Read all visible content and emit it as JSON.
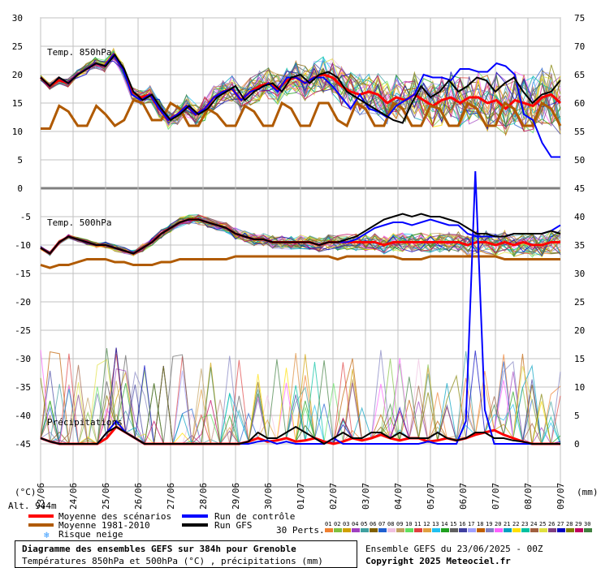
{
  "chart_data": {
    "type": "line",
    "title": "Diagramme des ensembles GEFS sur 384h pour Grenoble",
    "subtitle": "Températures 850hPa et 500hPa (°C) , précipitations (mm)",
    "altitude_label": "Alt. 944m",
    "left_axis_unit": "(°C)",
    "right_axis_unit": "(mm)",
    "x_dates": [
      "23/06",
      "24/06",
      "25/06",
      "26/06",
      "27/06",
      "28/06",
      "29/06",
      "30/06",
      "01/07",
      "02/07",
      "03/07",
      "04/07",
      "05/07",
      "06/07",
      "07/07",
      "08/07",
      "09/07"
    ],
    "panels": {
      "t850": {
        "label": "Temp. 850hPa",
        "left_ticks": [
          "30",
          "25",
          "20",
          "15",
          "10",
          "5",
          "0"
        ],
        "right_ticks": [
          "75",
          "70",
          "65",
          "60",
          "55",
          "50",
          "45"
        ],
        "ylim": [
          0,
          30
        ]
      },
      "t500": {
        "label": "Temp. 500hPa",
        "left_ticks": [
          "-5",
          "-10",
          "-15",
          "-20",
          "-25",
          "-30",
          "-35",
          "-40",
          "-45"
        ],
        "right_ticks": [
          "40",
          "35",
          "30",
          "25",
          "20",
          "15",
          "10",
          "5",
          "0"
        ],
        "ylim": [
          -45,
          -5
        ]
      },
      "precip": {
        "label": "Précipitations",
        "unit": "mm"
      }
    },
    "series": [
      {
        "name": "Moyenne des scénarios",
        "color": "#ff0000",
        "t850": [
          19.5,
          18,
          19,
          18.5,
          20,
          21,
          22,
          21.5,
          23.5,
          21,
          17,
          16,
          16.5,
          14,
          12,
          13,
          14.5,
          13,
          14,
          16,
          17,
          17.5,
          15.5,
          17,
          18,
          18.5,
          17.5,
          19,
          19.5,
          18.5,
          19.5,
          20,
          19.5,
          18,
          17,
          16.5,
          17,
          16.5,
          15,
          16,
          15.5,
          16.5,
          15.5,
          14.5,
          15.5,
          16,
          15,
          16,
          16,
          15,
          15.5,
          14,
          15.5,
          15,
          14.5,
          16,
          16.5,
          15
        ],
        "t500": [
          -10.5,
          -11.5,
          -9.5,
          -8.5,
          -9,
          -9.5,
          -10,
          -10,
          -10.5,
          -11,
          -11.5,
          -10.5,
          -9.5,
          -8,
          -7,
          -6,
          -5.5,
          -5.5,
          -6,
          -6.5,
          -7,
          -8,
          -8.5,
          -9,
          -9,
          -9.5,
          -9.5,
          -9.5,
          -9.5,
          -9.5,
          -10,
          -9.5,
          -9.5,
          -9.5,
          -9.5,
          -9.5,
          -9.5,
          -10,
          -9.5,
          -9.5,
          -9.5,
          -9.5,
          -9.5,
          -9.5,
          -9.5,
          -9.5,
          -10,
          -9.5,
          -9.5,
          -10,
          -9.5,
          -10,
          -9.5,
          -10,
          -10,
          -9.5,
          -9.5
        ],
        "precip": [
          0.5,
          0.2,
          0,
          0,
          0,
          0,
          0,
          0.5,
          1.5,
          1,
          0.5,
          0,
          0,
          0,
          0,
          0,
          0,
          0,
          0,
          0,
          0,
          0,
          0.2,
          0.5,
          0.2,
          0.3,
          0.5,
          0.2,
          0.3,
          0.5,
          0.2,
          0,
          0.2,
          0.5,
          0.3,
          0.5,
          0.8,
          0.5,
          0.3,
          0.5,
          0.5,
          0.2,
          0.3,
          0.5,
          0.3,
          0.5,
          0.8,
          1,
          1.2,
          0.8,
          0.5,
          0.2,
          0,
          0,
          0,
          0
        ]
      },
      {
        "name": "Moyenne 1981-2010",
        "color": "#b05a00",
        "t850": [
          10.5,
          10.5,
          14.5,
          13.5,
          11,
          11,
          14.5,
          13,
          11,
          12,
          15.5,
          15,
          12,
          12,
          15,
          14,
          11,
          11,
          14,
          13,
          11,
          11,
          14.5,
          13.5,
          11,
          11,
          15,
          14,
          11,
          11,
          15,
          15,
          12,
          11,
          15,
          14,
          11,
          11,
          15,
          14,
          11,
          11,
          14.5,
          14,
          11,
          11,
          15,
          14,
          11,
          11,
          15,
          14,
          11,
          11,
          15,
          14,
          11
        ],
        "t500": [
          -13.5,
          -14,
          -13.5,
          -13.5,
          -13,
          -12.5,
          -12.5,
          -12.5,
          -13,
          -13,
          -13.5,
          -13.5,
          -13.5,
          -13,
          -13,
          -12.5,
          -12.5,
          -12.5,
          -12.5,
          -12.5,
          -12.5,
          -12,
          -12,
          -12,
          -12,
          -12,
          -12,
          -12,
          -12,
          -12,
          -12,
          -12,
          -12.5,
          -12,
          -12,
          -12,
          -12,
          -12,
          -12,
          -12.5,
          -12.5,
          -12.5,
          -12,
          -12,
          -12,
          -12,
          -12,
          -12,
          -12,
          -12,
          -12.5,
          -12.5,
          -12.5,
          -12.5,
          -12.5,
          -12.5,
          -12.5
        ]
      },
      {
        "name": "Run de contrôle",
        "color": "#0000ff",
        "t850": [
          19.5,
          18,
          19.5,
          18.5,
          20,
          21,
          22,
          21.5,
          23.5,
          21,
          16.5,
          15.5,
          16.5,
          14,
          12,
          13,
          14.5,
          13,
          14,
          16,
          17,
          17.5,
          15.5,
          17,
          17.5,
          18.5,
          17,
          19.5,
          19.5,
          18.5,
          19.5,
          19.5,
          18,
          16,
          14,
          16.5,
          14,
          13.5,
          12.5,
          14.5,
          15.5,
          16.5,
          20,
          19.5,
          19.5,
          19,
          21,
          21,
          20.5,
          20.5,
          22,
          21.5,
          20,
          13,
          12,
          8,
          5.5,
          5.5
        ],
        "t500": [
          -10.5,
          -11.5,
          -9.5,
          -8.5,
          -9,
          -9.5,
          -10,
          -10,
          -10.5,
          -11,
          -11.5,
          -10.5,
          -9.5,
          -8,
          -7,
          -6,
          -5.5,
          -5.5,
          -6,
          -6.5,
          -7,
          -8,
          -8.5,
          -9,
          -9,
          -9.5,
          -9.5,
          -9.5,
          -9.5,
          -9.5,
          -10,
          -9.5,
          -9.5,
          -9.5,
          -9,
          -8,
          -7,
          -6.5,
          -6,
          -6,
          -6.5,
          -6,
          -5.5,
          -6,
          -6.5,
          -6.5,
          -8,
          -8.5,
          -8.5,
          -8.5,
          -8.5,
          -8,
          -8,
          -8,
          -8,
          -7.5,
          -6.5
        ],
        "precip": [
          0.5,
          0.2,
          0,
          0,
          0,
          0,
          0,
          1,
          2,
          1,
          0.5,
          0,
          0,
          0,
          0,
          0,
          0,
          0,
          0,
          0,
          0,
          0,
          0,
          0.2,
          0.3,
          0,
          0.2,
          0,
          0,
          0,
          0,
          0.5,
          0,
          0,
          0,
          0,
          0,
          0,
          0,
          0,
          0,
          0.2,
          0,
          0,
          0,
          2,
          24,
          3,
          0,
          0,
          0,
          0,
          0,
          0,
          0,
          0
        ]
      },
      {
        "name": "Run GFS",
        "color": "#000000",
        "t850": [
          19.5,
          18,
          19.5,
          18.5,
          20,
          21,
          22,
          21.5,
          23.5,
          21,
          17,
          15.5,
          16.5,
          14,
          12,
          13,
          14.5,
          13,
          14,
          16,
          17,
          18,
          15.5,
          17,
          18,
          18.5,
          17,
          19.5,
          20,
          18.5,
          20,
          20.5,
          19.5,
          17,
          16,
          15,
          14,
          13,
          12,
          11.5,
          15,
          18,
          16,
          17,
          19,
          17,
          18,
          19.5,
          19,
          17,
          18.5,
          19.5,
          17,
          15,
          16.5,
          17,
          19
        ],
        "t500": [
          -10.5,
          -11.5,
          -9.5,
          -8.5,
          -9,
          -9.5,
          -10,
          -10,
          -10.5,
          -11,
          -11.5,
          -10.5,
          -9.5,
          -8,
          -7,
          -6,
          -5.5,
          -5.5,
          -6,
          -6.5,
          -7,
          -8,
          -8.5,
          -9,
          -9,
          -9.5,
          -9.5,
          -9.5,
          -9.5,
          -9.5,
          -10,
          -9.5,
          -9.5,
          -9,
          -8.5,
          -7.5,
          -6.5,
          -5.5,
          -5,
          -4.5,
          -5,
          -4.5,
          -5,
          -5,
          -5.5,
          -6,
          -7,
          -8,
          -8,
          -8.5,
          -8.5,
          -8,
          -8,
          -8,
          -8,
          -7.5,
          -8
        ],
        "precip": [
          0.5,
          0.2,
          0,
          0,
          0,
          0,
          0,
          1,
          1.5,
          1,
          0.5,
          0,
          0,
          0,
          0,
          0,
          0,
          0,
          0,
          0,
          0,
          0,
          0.2,
          1,
          0.5,
          0.5,
          1,
          1.5,
          1,
          0.5,
          0,
          0.5,
          1,
          0.5,
          0.5,
          1,
          1,
          0.5,
          1,
          0.5,
          0.5,
          0.5,
          1,
          0.5,
          0.3,
          0.5,
          1,
          1,
          0.5,
          0.5,
          0.3,
          0.2,
          0,
          0,
          0,
          0
        ]
      }
    ],
    "legend": {
      "mean": "Moyenne des scénarios",
      "clim": "Moyenne 1981-2010",
      "snow": "Risque neige",
      "control": "Run de contrôle",
      "gfs": "Run GFS",
      "perts_label": "30 Perts.",
      "perts": [
        {
          "label": "01",
          "color": "#f08030"
        },
        {
          "label": "02",
          "color": "#80c040"
        },
        {
          "label": "03",
          "color": "#d0a000"
        },
        {
          "label": "04",
          "color": "#a040c0"
        },
        {
          "label": "05",
          "color": "#40a0a0"
        },
        {
          "label": "06",
          "color": "#806000"
        },
        {
          "label": "07",
          "color": "#2060d0"
        },
        {
          "label": "08",
          "color": "#f0c0e0"
        },
        {
          "label": "09",
          "color": "#c0a060"
        },
        {
          "label": "10",
          "color": "#60e060"
        },
        {
          "label": "11",
          "color": "#e04040"
        },
        {
          "label": "12",
          "color": "#e0a040"
        },
        {
          "label": "13",
          "color": "#20c0f0"
        },
        {
          "label": "14",
          "color": "#20a020"
        },
        {
          "label": "15",
          "color": "#606060"
        },
        {
          "label": "16",
          "color": "#4040a0"
        },
        {
          "label": "17",
          "color": "#a0a0ff"
        },
        {
          "label": "18",
          "color": "#c06000"
        },
        {
          "label": "19",
          "color": "#8080c0"
        },
        {
          "label": "20",
          "color": "#ff60ff"
        },
        {
          "label": "21",
          "color": "#00a0c0"
        },
        {
          "label": "22",
          "color": "#ffe000"
        },
        {
          "label": "23",
          "color": "#00c0a0"
        },
        {
          "label": "24",
          "color": "#a06040"
        },
        {
          "label": "25",
          "color": "#e0e040"
        },
        {
          "label": "26",
          "color": "#804080"
        },
        {
          "label": "27",
          "color": "#0000c0"
        },
        {
          "label": "28",
          "color": "#808000"
        },
        {
          "label": "29",
          "color": "#c00060"
        },
        {
          "label": "30",
          "color": "#408040"
        }
      ]
    },
    "grid": true
  },
  "footer": {
    "title": "Diagramme des ensembles GEFS sur 384h pour Grenoble",
    "subtitle": "Températures 850hPa et 500hPa (°C) , précipitations (mm)",
    "ensemble_run": "Ensemble GEFS du 23/06/2025 - 00Z",
    "copyright": "Copyright 2025 Meteociel.fr"
  }
}
